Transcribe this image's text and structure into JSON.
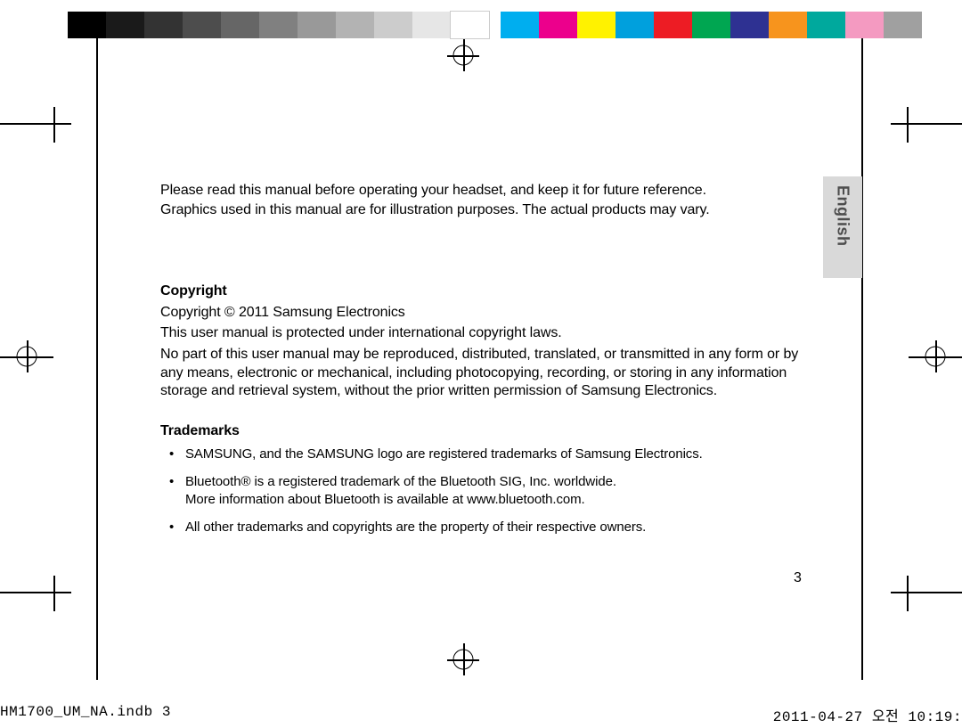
{
  "colorbars": {
    "left": [
      "#000000",
      "#1a1a1a",
      "#333333",
      "#4d4d4d",
      "#666666",
      "#808080",
      "#999999",
      "#b3b3b3",
      "#cccccc",
      "#e6e6e6",
      "#ffffff"
    ],
    "right": [
      "#00aeef",
      "#ec008c",
      "#fff200",
      "#00a0dd",
      "#ed1c24",
      "#00a651",
      "#2e3192",
      "#f7941d",
      "#00a99d",
      "#f49ac1",
      "#a0a0a0"
    ]
  },
  "registration_marks": {
    "stroke": "#000000",
    "stroke_width": 1,
    "diameter_outer": 24,
    "diameter_inner": 24,
    "cross_length": 36
  },
  "corner_marks": {
    "color": "#000000",
    "thickness": 2
  },
  "language_tab": {
    "label": "English",
    "bg": "#d9d9d9",
    "text_color": "#4d4d4d"
  },
  "content": {
    "intro1": "Please read this manual before operating your headset, and keep it for future reference.",
    "intro2": "Graphics used in this manual are for illustration purposes. The actual products may vary.",
    "copyright_h": "Copyright",
    "copyright_l1": "Copyright © 2011 Samsung Electronics",
    "copyright_l2": "This user manual is protected under international copyright laws.",
    "copyright_l3": "No part of this user manual may be reproduced, distributed, translated, or transmitted in any form or by any means, electronic or mechanical, including photocopying, recording, or storing in any information storage and retrieval system, without the prior written permission of Samsung Electronics.",
    "trademarks_h": "Trademarks",
    "tm1": "SAMSUNG, and the SAMSUNG logo are registered trademarks of Samsung Electronics.",
    "tm2a": "Bluetooth® is a registered trademark of the Bluetooth SIG, Inc. worldwide.",
    "tm2b": "More information about Bluetooth is available at www.bluetooth.com.",
    "tm3": "All other trademarks and copyrights are the property of their respective owners."
  },
  "page_number": "3",
  "footer": {
    "left": "HM1700_UM_NA.indb   3",
    "right": "2011-04-27   오전 10:19:"
  }
}
